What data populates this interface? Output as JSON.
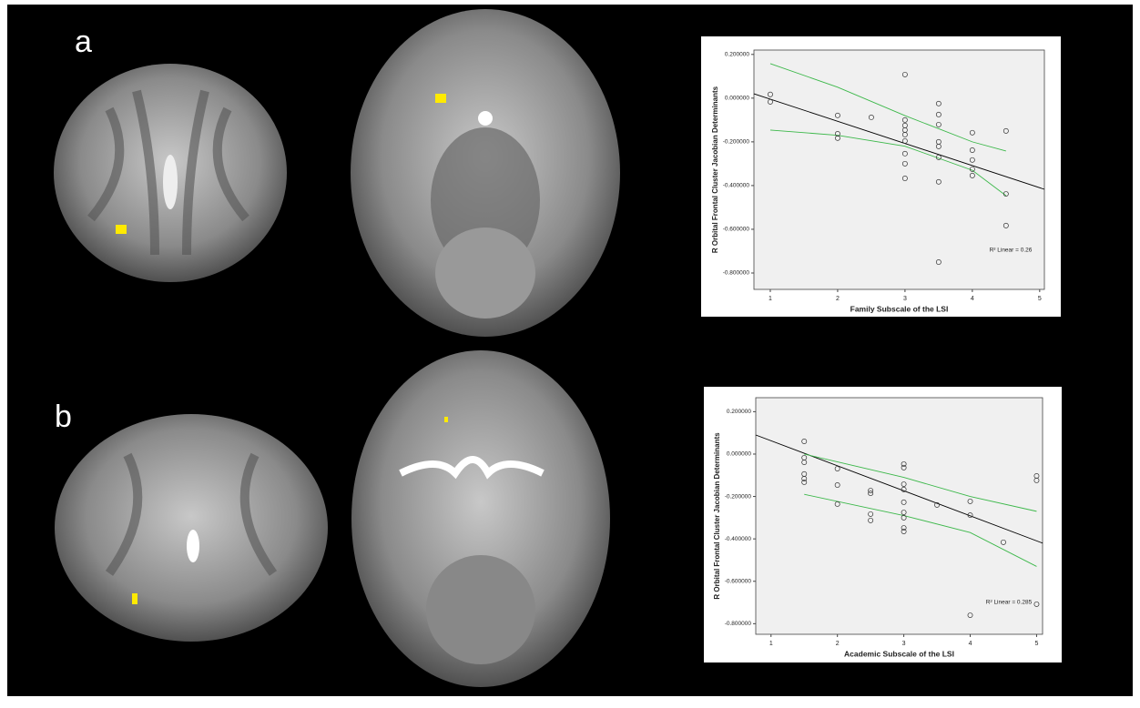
{
  "panel_labels": [
    "a",
    "b"
  ],
  "chart_data": [
    {
      "type": "scatter",
      "x_label": "Family Subscale of the LSI",
      "y_label": "R Orbital Frontal Cluster Jacobian Determinants",
      "annotation": "R² Linear = 0.26",
      "x": [
        1,
        1,
        2,
        2,
        2,
        2.5,
        3,
        3,
        3,
        3,
        3,
        3,
        3,
        3,
        3,
        3.5,
        3.5,
        3.5,
        3.5,
        3.5,
        3.5,
        3.5,
        3.5,
        4,
        4,
        4,
        4,
        4,
        4.5,
        4.5,
        4.5
      ],
      "values": [
        0.017,
        -0.017,
        -0.079,
        -0.163,
        -0.183,
        -0.088,
        0.108,
        -0.1,
        -0.125,
        -0.146,
        -0.167,
        -0.196,
        -0.254,
        -0.3,
        -0.367,
        -0.025,
        -0.075,
        -0.121,
        -0.2,
        -0.221,
        -0.271,
        -0.383,
        -0.75,
        -0.158,
        -0.238,
        -0.283,
        -0.325,
        -0.354,
        -0.15,
        -0.438,
        -0.583
      ],
      "lines": [
        {
          "color": "#000000",
          "x": [
            0.757,
            5.07
          ],
          "values": [
            0.02,
            -0.417
          ]
        },
        {
          "color": "#3cb84a",
          "x": [
            1,
            2,
            3,
            4,
            4.5
          ],
          "values": [
            0.158,
            0.05,
            -0.08,
            -0.2,
            -0.242
          ]
        },
        {
          "color": "#3cb84a",
          "x": [
            1,
            2,
            3,
            4,
            4.5
          ],
          "values": [
            -0.146,
            -0.17,
            -0.22,
            -0.33,
            -0.446
          ]
        }
      ],
      "xlim": [
        0.757,
        5.07
      ],
      "xticks": [
        1,
        2,
        3,
        4,
        5
      ],
      "ylim": [
        -0.875,
        0.22
      ],
      "yticks": [
        {
          "value": 0.2,
          "label": "0.200000"
        },
        {
          "value": 0,
          "label": "0.000000"
        },
        {
          "value": -0.2,
          "label": "-0.200000"
        },
        {
          "value": -0.4,
          "label": "-0.400000"
        },
        {
          "value": -0.6,
          "label": "-0.600000"
        },
        {
          "value": -0.8,
          "label": "-0.800000"
        }
      ]
    },
    {
      "type": "scatter",
      "x_label": "Academic Subscale of the LSI",
      "y_label": "R Orbital Frontal Cluster Jacobian Determinants",
      "annotation": "R² Linear = 0.285",
      "x": [
        1.5,
        1.5,
        1.5,
        1.5,
        1.5,
        1.5,
        2,
        2,
        2,
        2.5,
        2.5,
        2.5,
        2.5,
        3,
        3,
        3,
        3,
        3,
        3,
        3,
        3,
        3,
        3.5,
        4,
        4,
        4,
        4.5,
        5,
        5,
        5
      ],
      "values": [
        0.06,
        -0.017,
        -0.039,
        -0.094,
        -0.116,
        -0.133,
        -0.069,
        -0.146,
        -0.236,
        -0.172,
        -0.185,
        -0.283,
        -0.313,
        -0.047,
        -0.064,
        -0.142,
        -0.167,
        -0.227,
        -0.275,
        -0.3,
        -0.348,
        -0.365,
        -0.24,
        -0.223,
        -0.288,
        -0.76,
        -0.416,
        -0.103,
        -0.124,
        -0.708
      ],
      "lines": [
        {
          "color": "#000000",
          "x": [
            0.77,
            5.09
          ],
          "values": [
            0.09,
            -0.42
          ]
        },
        {
          "color": "#3cb84a",
          "x": [
            1.5,
            3,
            4,
            5
          ],
          "values": [
            0,
            -0.11,
            -0.2,
            -0.27
          ]
        },
        {
          "color": "#3cb84a",
          "x": [
            1.5,
            3,
            4,
            5
          ],
          "values": [
            -0.19,
            -0.29,
            -0.37,
            -0.53
          ]
        }
      ],
      "xlim": [
        0.77,
        5.09
      ],
      "xticks": [
        1,
        2,
        3,
        4,
        5
      ],
      "ylim": [
        -0.85,
        0.266
      ],
      "yticks": [
        {
          "value": 0.2,
          "label": "0.200000"
        },
        {
          "value": 0,
          "label": "0.000000"
        },
        {
          "value": -0.2,
          "label": "-0.200000"
        },
        {
          "value": -0.4,
          "label": "-0.400000"
        },
        {
          "value": -0.6,
          "label": "-0.600000"
        },
        {
          "value": -0.8,
          "label": "-0.800000"
        }
      ]
    }
  ]
}
